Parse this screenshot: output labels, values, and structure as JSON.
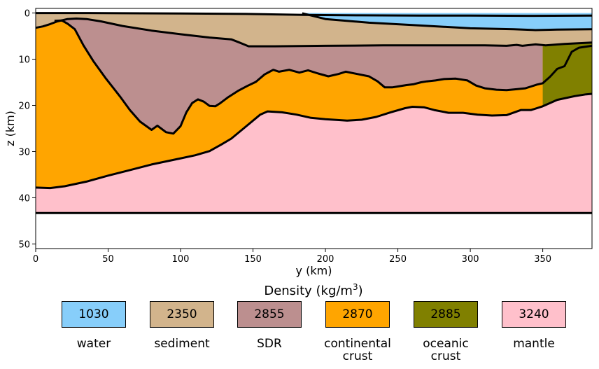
{
  "chart_data": {
    "type": "area",
    "xlabel": "y (km)",
    "ylabel": "z (km)",
    "xlim": [
      0,
      384
    ],
    "ylim": [
      51,
      -1
    ],
    "xticks": [
      0,
      50,
      100,
      150,
      200,
      250,
      300,
      350
    ],
    "yticks": [
      0,
      10,
      20,
      30,
      40,
      50
    ],
    "layers": [
      {
        "name": "water",
        "density": 1030,
        "color": "#87cefa"
      },
      {
        "name": "sediment",
        "density": 2350,
        "color": "#d2b48c"
      },
      {
        "name": "SDR",
        "density": 2855,
        "color": "#bc8f8f"
      },
      {
        "name": "continental crust",
        "density": 2870,
        "color": "#ffa500"
      },
      {
        "name": "oceanic crust",
        "density": 2885,
        "color": "#808000"
      },
      {
        "name": "mantle",
        "density": 3240,
        "color": "#ffc0cb"
      }
    ],
    "boundaries": {
      "seafloor": [
        [
          0,
          0
        ],
        [
          30,
          0
        ],
        [
          60,
          0.05
        ],
        [
          100,
          0.1
        ],
        [
          145,
          0.2
        ],
        [
          185,
          0.4
        ],
        [
          225,
          0.5
        ],
        [
          265,
          0.55
        ],
        [
          300,
          0.55
        ],
        [
          340,
          0.6
        ],
        [
          384,
          0.55
        ]
      ],
      "water_bottom": [
        [
          184,
          0.05
        ],
        [
          200,
          1.3
        ],
        [
          230,
          2.1
        ],
        [
          260,
          2.6
        ],
        [
          300,
          3.3
        ],
        [
          330,
          3.5
        ],
        [
          345,
          3.7
        ],
        [
          360,
          3.6
        ],
        [
          384,
          3.5
        ]
      ],
      "top_basement": [
        [
          0,
          3.2
        ],
        [
          5,
          2.9
        ],
        [
          10,
          2.4
        ],
        [
          15,
          1.8
        ],
        [
          22,
          1.3
        ],
        [
          28,
          1.2
        ],
        [
          35,
          1.3
        ],
        [
          45,
          1.8
        ],
        [
          60,
          2.8
        ],
        [
          80,
          3.8
        ],
        [
          100,
          4.6
        ],
        [
          120,
          5.3
        ],
        [
          135,
          5.7
        ],
        [
          140,
          6.3
        ],
        [
          143,
          6.7
        ],
        [
          147,
          7.2
        ],
        [
          165,
          7.2
        ],
        [
          200,
          7.1
        ],
        [
          240,
          7.0
        ],
        [
          280,
          7.0
        ],
        [
          310,
          7.0
        ],
        [
          325,
          7.1
        ],
        [
          332,
          6.9
        ],
        [
          336,
          7.1
        ],
        [
          345,
          6.8
        ],
        [
          352,
          7.0
        ],
        [
          365,
          6.7
        ],
        [
          384,
          6.4
        ]
      ],
      "sdr_base": [
        [
          13,
          1.7
        ],
        [
          18,
          1.6
        ],
        [
          22,
          2.3
        ],
        [
          27,
          3.5
        ],
        [
          33,
          7
        ],
        [
          40,
          10.5
        ],
        [
          48,
          14
        ],
        [
          58,
          18
        ],
        [
          65,
          21
        ],
        [
          72,
          23.5
        ],
        [
          80,
          25.3
        ],
        [
          84,
          24.4
        ],
        [
          90,
          25.8
        ],
        [
          95,
          26.1
        ],
        [
          100,
          24.5
        ],
        [
          104,
          21.5
        ],
        [
          108,
          19.5
        ],
        [
          112,
          18.7
        ],
        [
          116,
          19.2
        ],
        [
          120,
          20.1
        ],
        [
          124,
          20.2
        ],
        [
          127,
          19.6
        ],
        [
          133,
          18.2
        ],
        [
          140,
          16.8
        ],
        [
          146,
          15.8
        ],
        [
          152,
          14.9
        ],
        [
          158,
          13.3
        ],
        [
          164,
          12.3
        ],
        [
          168,
          12.7
        ],
        [
          175,
          12.3
        ],
        [
          182,
          12.9
        ],
        [
          188,
          12.4
        ],
        [
          195,
          13.1
        ],
        [
          202,
          13.7
        ],
        [
          209,
          13.2
        ],
        [
          214,
          12.7
        ],
        [
          222,
          13.2
        ],
        [
          230,
          13.7
        ],
        [
          236,
          14.8
        ],
        [
          241,
          16.1
        ],
        [
          246,
          16.1
        ],
        [
          250,
          15.9
        ],
        [
          256,
          15.6
        ],
        [
          261,
          15.4
        ],
        [
          266,
          15.0
        ],
        [
          270,
          14.8
        ],
        [
          276,
          14.6
        ],
        [
          282,
          14.3
        ],
        [
          290,
          14.2
        ],
        [
          298,
          14.6
        ],
        [
          304,
          15.7
        ],
        [
          310,
          16.3
        ],
        [
          318,
          16.6
        ],
        [
          325,
          16.7
        ],
        [
          332,
          16.5
        ],
        [
          338,
          16.3
        ],
        [
          342,
          15.9
        ],
        [
          346,
          15.5
        ],
        [
          350,
          15.2
        ],
        [
          355,
          13.8
        ],
        [
          360,
          12.1
        ],
        [
          365,
          11.5
        ],
        [
          370,
          8.4
        ],
        [
          375,
          7.5
        ],
        [
          384,
          7.1
        ]
      ],
      "moho": [
        [
          0,
          37.8
        ],
        [
          10,
          37.9
        ],
        [
          20,
          37.5
        ],
        [
          35,
          36.5
        ],
        [
          50,
          35.2
        ],
        [
          65,
          34.0
        ],
        [
          80,
          32.8
        ],
        [
          95,
          31.8
        ],
        [
          110,
          30.8
        ],
        [
          120,
          29.9
        ],
        [
          128,
          28.5
        ],
        [
          135,
          27.2
        ],
        [
          145,
          24.6
        ],
        [
          155,
          22.0
        ],
        [
          160,
          21.3
        ],
        [
          170,
          21.5
        ],
        [
          180,
          22.0
        ],
        [
          190,
          22.7
        ],
        [
          200,
          23.0
        ],
        [
          215,
          23.3
        ],
        [
          225,
          23.1
        ],
        [
          235,
          22.5
        ],
        [
          245,
          21.5
        ],
        [
          255,
          20.6
        ],
        [
          260,
          20.3
        ],
        [
          268,
          20.4
        ],
        [
          275,
          21.0
        ],
        [
          285,
          21.6
        ],
        [
          295,
          21.6
        ],
        [
          305,
          22.0
        ],
        [
          315,
          22.2
        ],
        [
          325,
          22.1
        ],
        [
          335,
          21.0
        ],
        [
          342,
          21.0
        ],
        [
          350,
          20.2
        ],
        [
          360,
          18.8
        ],
        [
          372,
          18.0
        ],
        [
          380,
          17.6
        ],
        [
          384,
          17.5
        ]
      ],
      "model_bottom": 43.3
    }
  }
}
